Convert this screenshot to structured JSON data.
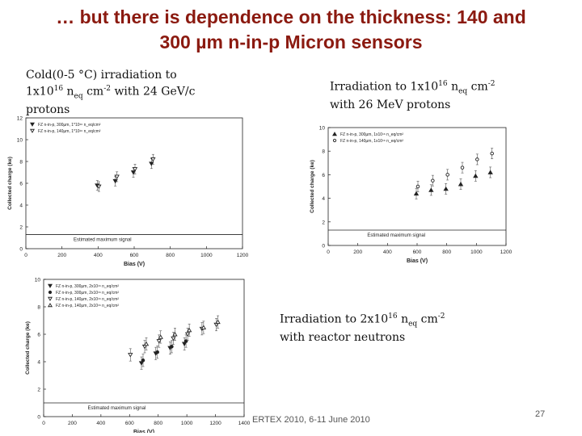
{
  "slide": {
    "title_line1": "… but there is dependence on the thickness: 140 and",
    "title_line2": "300 µm n-in-p Micron sensors",
    "caption1": {
      "l1": "Cold(0-5 °C)  irradiation to",
      "l2a": "1x10",
      "l2sup": "16",
      "l2b": " n",
      "l2sub": "eq",
      "l2c": " cm",
      "l2sup2": "-2",
      "l2d": " with 24 GeV/c",
      "l3": "protons"
    },
    "caption2": {
      "l1a": "Irradiation to 1x10",
      "l1sup": "16",
      "l1b": " n",
      "l1sub": "eq",
      "l1c": " cm",
      "l1sup2": "-2",
      "l2": "with 26 MeV protons"
    },
    "caption3": {
      "l1a": "Irradiation to 2x10",
      "l1sup": "16",
      "l1b": " n",
      "l1sub": "eq",
      "l1c": " cm",
      "l1sup2": "-2",
      "l2": "with reactor neutrons"
    },
    "footer": "ERTEX 2010, 6-11 June 2010",
    "page_number": "27"
  },
  "chart_data": [
    {
      "type": "scatter",
      "xlabel": "Bias (V)",
      "ylabel": "Collected charge (ke)",
      "xlim": [
        0,
        1200
      ],
      "ylim": [
        0,
        12
      ],
      "xticks": [
        0,
        200,
        400,
        600,
        800,
        1000,
        1200
      ],
      "yticks": [
        0,
        2,
        4,
        6,
        8,
        10,
        12
      ],
      "legend_position": "top-left",
      "series": [
        {
          "name": "FZ n-in-p, 300µm, 1*10¹⁶ n_eq/cm²",
          "marker": "filled-triangle-down",
          "x": [
            400,
            500,
            600,
            700
          ],
          "y": [
            5.8,
            6.2,
            7.0,
            7.8
          ]
        },
        {
          "name": "FZ n-in-p, 140µm, 1*10¹⁶ n_eq/cm²",
          "marker": "open-triangle-down",
          "x": [
            400,
            500,
            600,
            700
          ],
          "y": [
            5.7,
            6.6,
            7.3,
            8.2
          ]
        }
      ],
      "reference_line": {
        "label": "Estimated maximum signal",
        "y": 1.3
      }
    },
    {
      "type": "scatter",
      "xlabel": "Bias (V)",
      "ylabel": "Collected charge (ke)",
      "xlim": [
        0,
        1200
      ],
      "ylim": [
        0,
        10
      ],
      "xticks": [
        0,
        200,
        400,
        600,
        800,
        1000,
        1200
      ],
      "yticks": [
        0,
        2,
        4,
        6,
        8,
        10
      ],
      "legend_position": "top-left",
      "series": [
        {
          "name": "FZ n-in-p, 300µm, 1x10¹⁶ n_eq/cm²",
          "marker": "filled-triangle-up",
          "x": [
            600,
            700,
            800,
            900,
            1000,
            1100
          ],
          "y": [
            4.4,
            4.7,
            4.8,
            5.2,
            5.9,
            6.2
          ]
        },
        {
          "name": "FZ n-in-p, 140µm, 1x10¹⁶ n_eq/cm²",
          "marker": "open-circle",
          "x": [
            600,
            700,
            800,
            900,
            1000,
            1100
          ],
          "y": [
            5.0,
            5.5,
            6.0,
            6.6,
            7.3,
            7.8
          ]
        }
      ],
      "reference_line": {
        "label": "Estimated maximum signal",
        "y": 1.3
      }
    },
    {
      "type": "scatter",
      "xlabel": "Bias (V)",
      "ylabel": "Collected charge (ke)",
      "xlim": [
        0,
        1400
      ],
      "ylim": [
        0,
        10
      ],
      "xticks": [
        0,
        200,
        400,
        600,
        800,
        1000,
        1200,
        1400
      ],
      "yticks": [
        0,
        2,
        4,
        6,
        8,
        10
      ],
      "legend_position": "top-left",
      "series": [
        {
          "name": "FZ n-in-p, 300µm, 2x10¹⁶ n_eq/cm²",
          "marker": "filled-triangle-down",
          "x": [
            700,
            800,
            900,
            1000
          ],
          "y": [
            3.9,
            4.6,
            5.0,
            5.3
          ]
        },
        {
          "name": "FZ n-in-p, 300µm, 2x10¹⁶ n_eq/cm²",
          "marker": "filled-circle",
          "x": [
            700,
            800,
            900,
            1000
          ],
          "y": [
            4.1,
            4.7,
            5.1,
            5.5
          ]
        },
        {
          "name": "FZ n-in-p, 140µm, 2x10¹⁶ n_eq/cm²",
          "marker": "open-triangle-down",
          "x": [
            600,
            700,
            800,
            900,
            1000,
            1100,
            1200
          ],
          "y": [
            4.5,
            5.1,
            5.5,
            5.7,
            6.0,
            6.4,
            6.7
          ]
        },
        {
          "name": "FZ n-in-p, 140µm, 2x10¹⁶ n_eq/cm²",
          "marker": "open-triangle-up",
          "x": [
            700,
            800,
            900,
            1000,
            1100,
            1200
          ],
          "y": [
            5.3,
            5.8,
            6.0,
            6.3,
            6.5,
            6.9
          ]
        }
      ],
      "reference_line": {
        "label": "Estimated maximum signal",
        "y": 1.0
      }
    }
  ]
}
